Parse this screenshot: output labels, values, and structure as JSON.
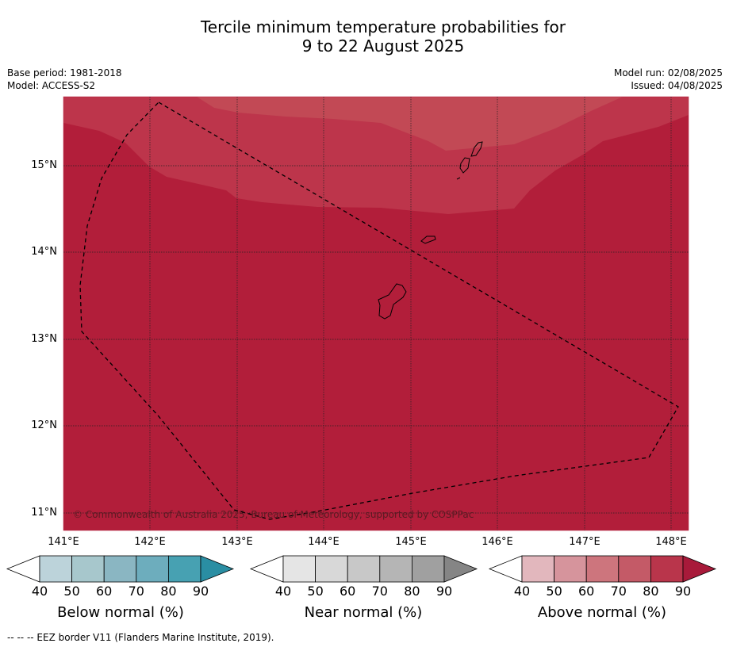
{
  "header": {
    "title_line1": "Tercile minimum temperature probabilities for",
    "title_line2": "9 to 22 August 2025"
  },
  "meta": {
    "base_period": "Base period: 1981-2018",
    "model": "Model: ACCESS-S2",
    "model_run": "Model run: 02/08/2025",
    "issued": "Issued: 04/08/2025"
  },
  "map": {
    "lat_labels": [
      "15°N",
      "14°N",
      "13°N",
      "12°N",
      "11°N"
    ],
    "lon_labels": [
      "141°E",
      "142°E",
      "143°E",
      "144°E",
      "145°E",
      "146°E",
      "147°E",
      "148°E"
    ],
    "copyright": "© Commonwealth of Australia 2025, Bureau of Meteorology, supported by COSPPac",
    "colors": {
      "above_80_90": "#b21e3a",
      "above_70_80": "#bd354b",
      "above_60_70": "#c24955",
      "coastline": "#000000",
      "gridline": "#222222"
    }
  },
  "legend": {
    "ticks": [
      "40",
      "50",
      "60",
      "70",
      "80",
      "90"
    ],
    "below": {
      "title": "Below normal (%)",
      "colors": [
        "#ffffff",
        "#bcd3da",
        "#a7c7cc",
        "#8ab6c2",
        "#6dadbd",
        "#47a1b2",
        "#2a8ea3"
      ]
    },
    "near": {
      "title": "Near normal (%)",
      "colors": [
        "#ffffff",
        "#e5e5e5",
        "#d8d8d8",
        "#c8c8c8",
        "#b5b5b5",
        "#a0a0a0",
        "#858585"
      ]
    },
    "above": {
      "title": "Above normal (%)",
      "colors": [
        "#ffffff",
        "#e2b7bd",
        "#d6949c",
        "#cd757d",
        "#c45a67",
        "#b9354b",
        "#a81a3a"
      ]
    }
  },
  "footer": {
    "eez_note": "--  --  -- EEZ border V11 (Flanders Marine Institute, 2019)."
  }
}
